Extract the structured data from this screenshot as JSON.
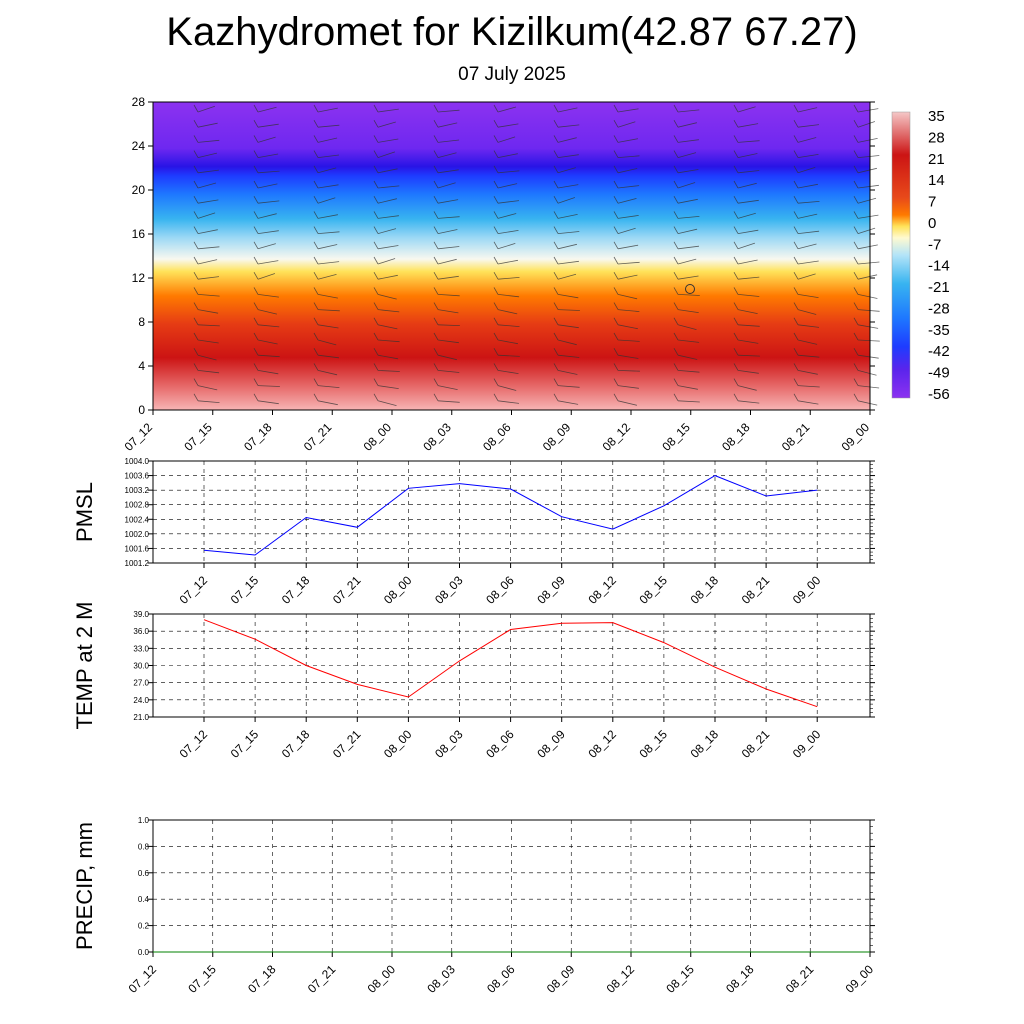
{
  "title": "Kazhydromet for Kizilkum(42.87 67.27)",
  "subtitle": "07 July 2025",
  "chart_data": [
    {
      "type": "heatmap",
      "name": "temperature-height",
      "x_ticks": [
        "07_12",
        "07_15",
        "07_18",
        "07_21",
        "08_00",
        "08_03",
        "08_06",
        "08_09",
        "08_12",
        "08_15",
        "08_18",
        "08_21",
        "09_00"
      ],
      "y_ticks": [
        "0",
        "4",
        "8",
        "12",
        "16",
        "20",
        "24",
        "28"
      ],
      "ylim": [
        0,
        28
      ],
      "colorbar_labels": [
        "35",
        "28",
        "21",
        "14",
        "7",
        "0",
        "-7",
        "-14",
        "-21",
        "-28",
        "-35",
        "-42",
        "-49",
        "-56"
      ],
      "colors": {
        "hot_light": "#f7b5b5",
        "hot": "#cc1414",
        "orange": "#ff7a00",
        "yellow": "#ffe35a",
        "white": "#f8f8f0",
        "cyan": "#38b4f0",
        "blue": "#1e3cff",
        "deep_blue": "#2814e6",
        "violet": "#8c32f0"
      }
    },
    {
      "type": "line",
      "name": "pmsl",
      "ylabel": "PMSL",
      "categories": [
        "07_12",
        "07_15",
        "07_18",
        "07_21",
        "08_00",
        "08_03",
        "08_06",
        "08_09",
        "08_12",
        "08_15",
        "08_18",
        "08_21",
        "09_00"
      ],
      "values": [
        1001.55,
        1001.42,
        1002.45,
        1002.18,
        1003.25,
        1003.38,
        1003.23,
        1002.47,
        1002.13,
        1002.77,
        1003.6,
        1003.04,
        1003.2
      ],
      "ylim": [
        1001.2,
        1004.0
      ],
      "y_ticks": [
        "1001.2",
        "1001.6",
        "1002.0",
        "1002.4",
        "1002.8",
        "1003.2",
        "1003.6",
        "1004.0"
      ],
      "color": "#0000ff"
    },
    {
      "type": "line",
      "name": "temp2m",
      "ylabel": "TEMP at 2 M",
      "categories": [
        "07_12",
        "07_15",
        "07_18",
        "07_21",
        "08_00",
        "08_03",
        "08_06",
        "08_09",
        "08_12",
        "08_15",
        "08_18",
        "08_21",
        "09_00"
      ],
      "values": [
        38.0,
        34.6,
        30.0,
        26.7,
        24.5,
        30.8,
        36.3,
        37.4,
        37.5,
        34.0,
        29.7,
        25.9,
        22.8
      ],
      "ylim": [
        21.0,
        39.0
      ],
      "y_ticks": [
        "21.0",
        "24.0",
        "27.0",
        "30.0",
        "33.0",
        "36.0",
        "39.0"
      ],
      "color": "#ff0000"
    },
    {
      "type": "line",
      "name": "precip",
      "ylabel": "PRECIP, mm",
      "x_ticks": [
        "07_12",
        "07_15",
        "07_18",
        "07_21",
        "08_00",
        "08_03",
        "08_06",
        "08_09",
        "08_12",
        "08_15",
        "08_18",
        "08_21",
        "09_00"
      ],
      "values": [
        0,
        0,
        0,
        0,
        0,
        0,
        0,
        0,
        0,
        0,
        0,
        0,
        0
      ],
      "ylim": [
        0.0,
        1.0
      ],
      "y_ticks": [
        "0.0",
        "0.2",
        "0.4",
        "0.6",
        "0.8",
        "1.0"
      ],
      "color": "#008000"
    }
  ]
}
